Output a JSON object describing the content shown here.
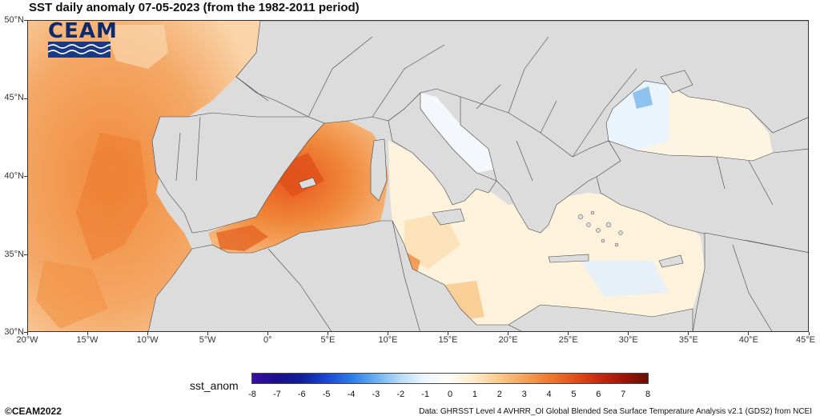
{
  "title": "SST daily anomaly 07-05-2023 (from the 1982-2011 period)",
  "logo_text": "CEAM",
  "lat_labels": [
    "50°N",
    "45°N",
    "40°N",
    "35°N",
    "30°N"
  ],
  "lon_labels": [
    "20°W",
    "15°W",
    "10°W",
    "5°W",
    "0°",
    "5°E",
    "10°E",
    "15°E",
    "20°E",
    "25°E",
    "30°E",
    "35°E",
    "40°E",
    "45°E"
  ],
  "colorbar": {
    "label": "sst_anom",
    "ticks": [
      "-8",
      "-7",
      "-6",
      "-5",
      "-4",
      "-3",
      "-2",
      "-1",
      "0",
      "1",
      "2",
      "3",
      "4",
      "5",
      "6",
      "7",
      "8"
    ],
    "colors": [
      "#3a0ea8",
      "#1a0f8c",
      "#0f1f9c",
      "#1a46d6",
      "#2a7be8",
      "#6ab0f2",
      "#b9dcf7",
      "#eef6fd",
      "#fffdf5",
      "#fdebc8",
      "#f9c98a",
      "#f5a25a",
      "#ee7a2e",
      "#e2511a",
      "#c92a10",
      "#9e1608",
      "#6b0d04"
    ]
  },
  "copyright": "©CEAM2022",
  "source": "Data: GHRSST Level 4 AVHRR_OI Global Blended Sea Surface Temperature Analysis v2.1 (GDS2) from NCEI"
}
